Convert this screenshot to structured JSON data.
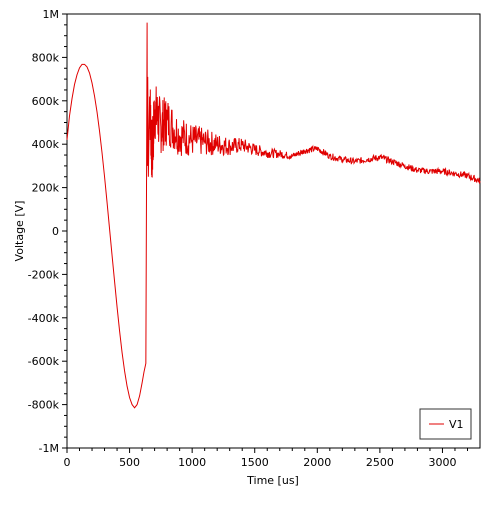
{
  "chart_data": {
    "type": "line",
    "title": "",
    "xlabel": "Time [us]",
    "ylabel": "Voltage [V]",
    "xlim": [
      0,
      3300
    ],
    "ylim": [
      -1000000,
      1000000
    ],
    "x_ticks": [
      0,
      500,
      1000,
      1500,
      2000,
      2500,
      3000
    ],
    "x_tick_labels": [
      "0",
      "500",
      "1000",
      "1500",
      "2000",
      "2500",
      "3000"
    ],
    "y_ticks": [
      -1000000,
      -800000,
      -600000,
      -400000,
      -200000,
      0,
      200000,
      400000,
      600000,
      800000,
      1000000
    ],
    "y_tick_labels": [
      "-1M",
      "-800k",
      "-600k",
      "-400k",
      "-200k",
      "0",
      "200k",
      "400k",
      "600k",
      "800k",
      "1M"
    ],
    "grid": false,
    "legend_position": "bottom-right",
    "series": [
      {
        "name": "V1",
        "color": "#e00000",
        "x": [
          0,
          20,
          40,
          60,
          80,
          100,
          120,
          140,
          160,
          180,
          200,
          220,
          240,
          260,
          280,
          300,
          320,
          340,
          360,
          380,
          400,
          420,
          440,
          460,
          480,
          500,
          520,
          540,
          560,
          580,
          600,
          615,
          630,
          635,
          640,
          642,
          645,
          650,
          660,
          680,
          700,
          750,
          800,
          900,
          1000,
          1100,
          1200,
          1300,
          1400,
          1500,
          1600,
          1700,
          1800,
          1900,
          2000,
          2100,
          2200,
          2300,
          2400,
          2500,
          2600,
          2700,
          2800,
          2900,
          3000,
          3100,
          3200,
          3300
        ],
        "values": [
          420000,
          530000,
          610000,
          675000,
          720000,
          752000,
          768000,
          768000,
          756000,
          728000,
          682000,
          622000,
          548000,
          460000,
          360000,
          250000,
          132000,
          10000,
          -112000,
          -232000,
          -350000,
          -460000,
          -560000,
          -645000,
          -715000,
          -768000,
          -800000,
          -815000,
          -800000,
          -760000,
          -700000,
          -650000,
          -610000,
          150000,
          960000,
          300000,
          710000,
          250000,
          620000,
          330000,
          560000,
          480000,
          510000,
          440000,
          420000,
          410000,
          400000,
          390000,
          395000,
          375000,
          360000,
          355000,
          345000,
          370000,
          380000,
          345000,
          330000,
          320000,
          330000,
          340000,
          320000,
          300000,
          280000,
          275000,
          275000,
          265000,
          255000,
          230000
        ]
      }
    ]
  }
}
